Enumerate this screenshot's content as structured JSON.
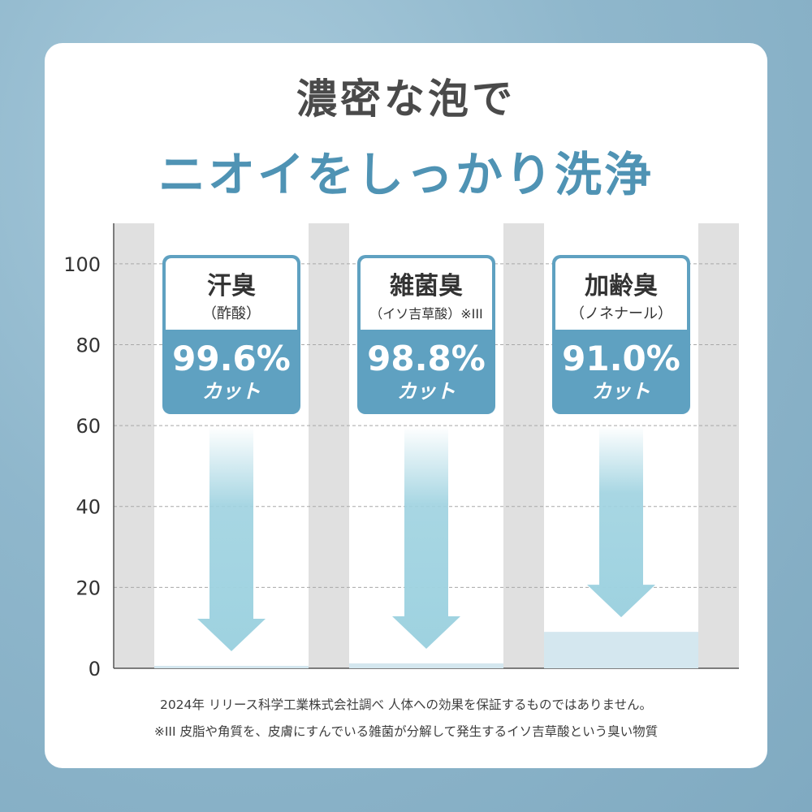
{
  "heading": {
    "line1": "濃密な泡で",
    "line2": "ニオイをしっかり洗浄"
  },
  "chart_data": {
    "type": "bar",
    "ylim": [
      0,
      110
    ],
    "yticks": [
      0,
      20,
      40,
      60,
      80,
      100
    ],
    "grid": true,
    "baseline_value": 100,
    "categories": [
      {
        "name": "汗臭",
        "sub": "（酢酸）",
        "percent": "99.6%",
        "cut": "カット",
        "reduction": 99.6,
        "remaining": 0.4
      },
      {
        "name": "雑菌臭",
        "sub": "（イソ吉草酸）※III",
        "percent": "98.8%",
        "cut": "カット",
        "reduction": 98.8,
        "remaining": 1.2
      },
      {
        "name": "加齢臭",
        "sub": "（ノネナール）",
        "percent": "91.0%",
        "cut": "カット",
        "reduction": 91.0,
        "remaining": 9.0
      }
    ]
  },
  "colors": {
    "accent": "#5fa1c1",
    "title_blue": "#4f93b4",
    "plot_bg": "#e0e0e0",
    "bar_white": "#ffffff",
    "remaining_fill": "#d4e7ef",
    "arrow": "#9ed2e0"
  },
  "footnotes": {
    "line1": "2024年 リリース科学工業株式会社調べ 人体への効果を保証するものではありません。",
    "line2": "※III 皮脂や角質を、皮膚にすんでいる雑菌が分解して発生するイソ吉草酸という臭い物質"
  }
}
